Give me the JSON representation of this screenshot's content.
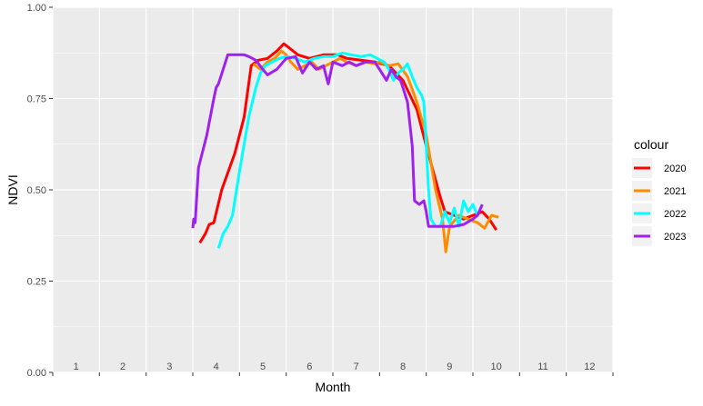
{
  "chart_data": {
    "type": "line",
    "xlabel": "Month",
    "ylabel": "NDVI",
    "xlim": [
      1,
      13
    ],
    "ylim": [
      0,
      1
    ],
    "y_ticks": [
      "0.00",
      "0.25",
      "0.50",
      "0.75",
      "1.00"
    ],
    "x_tick_labels": [
      "1",
      "2",
      "3",
      "4",
      "5",
      "6",
      "7",
      "8",
      "9",
      "10",
      "11",
      "12"
    ],
    "grid": true,
    "legend": {
      "title": "colour",
      "position": "right"
    },
    "series": [
      {
        "name": "2020",
        "color": "#ff0000",
        "points": [
          [
            4.15,
            0.355
          ],
          [
            4.27,
            0.38
          ],
          [
            4.35,
            0.405
          ],
          [
            4.45,
            0.41
          ],
          [
            4.62,
            0.5
          ],
          [
            4.9,
            0.6
          ],
          [
            5.1,
            0.7
          ],
          [
            5.25,
            0.84
          ],
          [
            5.4,
            0.855
          ],
          [
            5.6,
            0.86
          ],
          [
            5.8,
            0.88
          ],
          [
            5.95,
            0.9
          ],
          [
            6.1,
            0.885
          ],
          [
            6.25,
            0.87
          ],
          [
            6.5,
            0.86
          ],
          [
            6.8,
            0.87
          ],
          [
            7.1,
            0.87
          ],
          [
            7.3,
            0.86
          ],
          [
            7.6,
            0.855
          ],
          [
            7.9,
            0.85
          ],
          [
            8.2,
            0.84
          ],
          [
            8.5,
            0.8
          ],
          [
            8.8,
            0.72
          ],
          [
            9.0,
            0.62
          ],
          [
            9.15,
            0.55
          ],
          [
            9.3,
            0.48
          ],
          [
            9.4,
            0.44
          ],
          [
            9.6,
            0.43
          ],
          [
            9.8,
            0.42
          ],
          [
            10.0,
            0.43
          ],
          [
            10.2,
            0.44
          ],
          [
            10.35,
            0.42
          ],
          [
            10.5,
            0.39
          ]
        ]
      },
      {
        "name": "2021",
        "color": "#ff8c00",
        "points": [
          [
            5.3,
            0.845
          ],
          [
            5.45,
            0.83
          ],
          [
            5.6,
            0.85
          ],
          [
            5.75,
            0.86
          ],
          [
            5.9,
            0.88
          ],
          [
            6.0,
            0.87
          ],
          [
            6.1,
            0.85
          ],
          [
            6.25,
            0.83
          ],
          [
            6.4,
            0.84
          ],
          [
            6.55,
            0.85
          ],
          [
            6.7,
            0.83
          ],
          [
            6.85,
            0.84
          ],
          [
            7.0,
            0.85
          ],
          [
            7.15,
            0.86
          ],
          [
            7.3,
            0.85
          ],
          [
            7.5,
            0.84
          ],
          [
            7.7,
            0.85
          ],
          [
            7.9,
            0.845
          ],
          [
            8.0,
            0.85
          ],
          [
            8.2,
            0.84
          ],
          [
            8.4,
            0.845
          ],
          [
            8.6,
            0.81
          ],
          [
            8.8,
            0.74
          ],
          [
            9.0,
            0.65
          ],
          [
            9.2,
            0.5
          ],
          [
            9.35,
            0.42
          ],
          [
            9.42,
            0.33
          ],
          [
            9.5,
            0.4
          ],
          [
            9.7,
            0.43
          ],
          [
            9.9,
            0.42
          ],
          [
            10.1,
            0.41
          ],
          [
            10.25,
            0.395
          ],
          [
            10.4,
            0.43
          ],
          [
            10.55,
            0.425
          ]
        ]
      },
      {
        "name": "2022",
        "color": "#00ffff",
        "points": [
          [
            4.55,
            0.34
          ],
          [
            4.65,
            0.38
          ],
          [
            4.75,
            0.4
          ],
          [
            4.85,
            0.43
          ],
          [
            5.0,
            0.55
          ],
          [
            5.2,
            0.7
          ],
          [
            5.35,
            0.78
          ],
          [
            5.45,
            0.82
          ],
          [
            5.55,
            0.84
          ],
          [
            5.7,
            0.85
          ],
          [
            5.85,
            0.86
          ],
          [
            6.0,
            0.865
          ],
          [
            6.2,
            0.86
          ],
          [
            6.4,
            0.85
          ],
          [
            6.6,
            0.86
          ],
          [
            6.8,
            0.865
          ],
          [
            7.0,
            0.865
          ],
          [
            7.2,
            0.875
          ],
          [
            7.4,
            0.87
          ],
          [
            7.6,
            0.865
          ],
          [
            7.8,
            0.87
          ],
          [
            7.95,
            0.86
          ],
          [
            8.1,
            0.85
          ],
          [
            8.2,
            0.83
          ],
          [
            8.3,
            0.8
          ],
          [
            8.4,
            0.82
          ],
          [
            8.5,
            0.83
          ],
          [
            8.6,
            0.845
          ],
          [
            8.7,
            0.81
          ],
          [
            8.8,
            0.78
          ],
          [
            8.9,
            0.76
          ],
          [
            8.95,
            0.74
          ],
          [
            9.05,
            0.5
          ],
          [
            9.1,
            0.42
          ],
          [
            9.2,
            0.4
          ],
          [
            9.3,
            0.4
          ],
          [
            9.4,
            0.44
          ],
          [
            9.5,
            0.41
          ],
          [
            9.6,
            0.45
          ],
          [
            9.7,
            0.4
          ],
          [
            9.8,
            0.47
          ],
          [
            9.9,
            0.44
          ],
          [
            10.0,
            0.46
          ],
          [
            10.1,
            0.43
          ]
        ]
      },
      {
        "name": "2023",
        "color": "#a020f0",
        "points": [
          [
            4.0,
            0.395
          ],
          [
            4.02,
            0.42
          ],
          [
            4.05,
            0.41
          ],
          [
            4.12,
            0.56
          ],
          [
            4.3,
            0.65
          ],
          [
            4.45,
            0.75
          ],
          [
            4.5,
            0.78
          ],
          [
            4.55,
            0.79
          ],
          [
            4.75,
            0.87
          ],
          [
            5.0,
            0.87
          ],
          [
            5.1,
            0.87
          ],
          [
            5.2,
            0.865
          ],
          [
            5.35,
            0.855
          ],
          [
            5.5,
            0.83
          ],
          [
            5.6,
            0.815
          ],
          [
            5.8,
            0.83
          ],
          [
            6.0,
            0.86
          ],
          [
            6.2,
            0.865
          ],
          [
            6.35,
            0.82
          ],
          [
            6.5,
            0.85
          ],
          [
            6.65,
            0.83
          ],
          [
            6.8,
            0.84
          ],
          [
            6.9,
            0.79
          ],
          [
            7.0,
            0.85
          ],
          [
            7.2,
            0.84
          ],
          [
            7.35,
            0.85
          ],
          [
            7.5,
            0.84
          ],
          [
            7.7,
            0.85
          ],
          [
            7.9,
            0.85
          ],
          [
            8.0,
            0.83
          ],
          [
            8.15,
            0.8
          ],
          [
            8.25,
            0.83
          ],
          [
            8.35,
            0.81
          ],
          [
            8.45,
            0.8
          ],
          [
            8.5,
            0.78
          ],
          [
            8.6,
            0.74
          ],
          [
            8.7,
            0.62
          ],
          [
            8.75,
            0.47
          ],
          [
            8.85,
            0.46
          ],
          [
            8.95,
            0.47
          ],
          [
            9.0,
            0.44
          ],
          [
            9.05,
            0.4
          ],
          [
            9.15,
            0.4
          ],
          [
            9.25,
            0.4
          ],
          [
            9.4,
            0.4
          ],
          [
            9.6,
            0.4
          ],
          [
            9.8,
            0.405
          ],
          [
            10.0,
            0.42
          ],
          [
            10.1,
            0.43
          ],
          [
            10.2,
            0.46
          ]
        ]
      }
    ]
  }
}
